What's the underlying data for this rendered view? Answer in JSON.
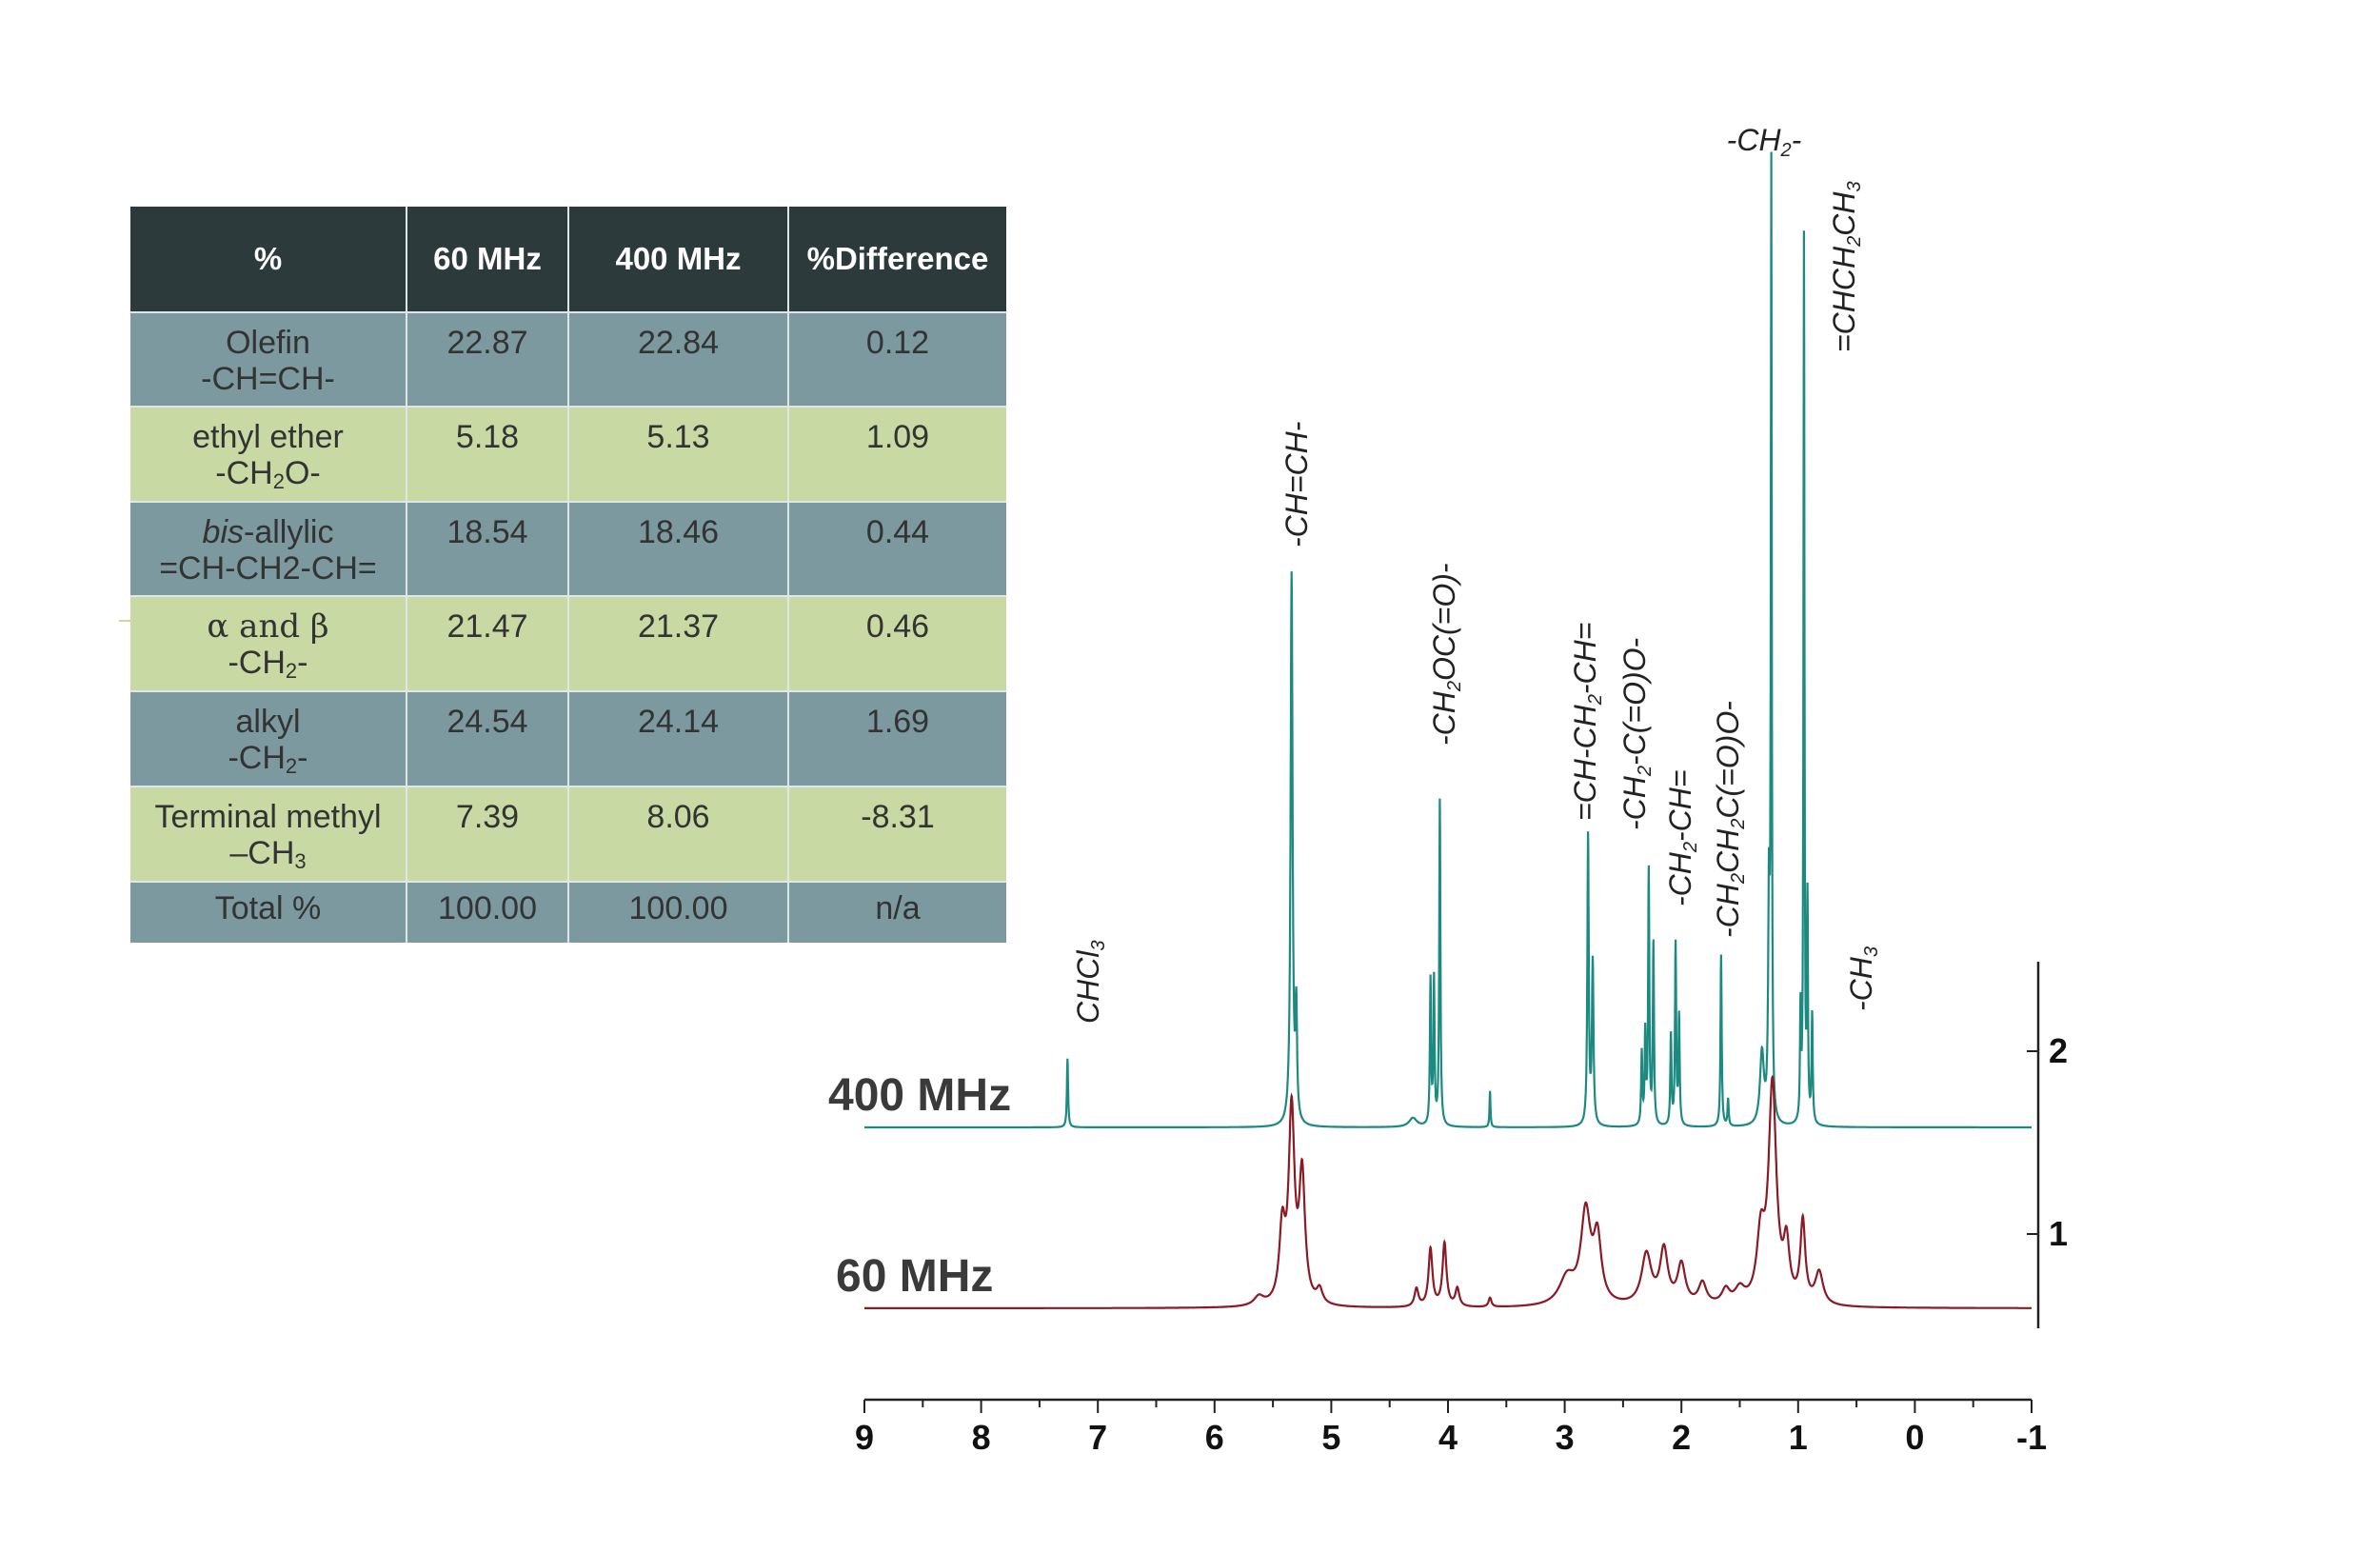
{
  "table": {
    "headers": [
      "%",
      "60 MHz",
      "400 MHz",
      "%Difference"
    ],
    "rows": [
      {
        "label": "Olefin",
        "sublabel": "-CH=CH-",
        "v60": "22.87",
        "v400": "22.84",
        "diff": "0.12"
      },
      {
        "label": "ethyl ether",
        "sub_pre": "-CH",
        "sub_num": "2",
        "sub_post": "O-",
        "v60": "5.18",
        "v400": "5.13",
        "diff": "1.09"
      },
      {
        "label_italic": "bis",
        "label_rest": "-allylic",
        "sublabel": "=CH-CH2-CH=",
        "v60": "18.54",
        "v400": "18.46",
        "diff": "0.44"
      },
      {
        "label": "α  and  β",
        "sub_pre": "-CH",
        "sub_num": "2",
        "sub_post": "-",
        "v60": "21.47",
        "v400": "21.37",
        "diff": "0.46"
      },
      {
        "label": "alkyl",
        "sub_pre": "-CH",
        "sub_num": "2",
        "sub_post": "-",
        "v60": "24.54",
        "v400": "24.14",
        "diff": "1.69"
      },
      {
        "label": "Terminal methyl",
        "sub_pre": "–CH",
        "sub_num": "3",
        "sub_post": "",
        "v60": "7.39",
        "v400": "8.06",
        "diff": "-8.31"
      },
      {
        "label": "Total %",
        "v60": "100.00",
        "v400": "100.00",
        "diff": "n/a"
      }
    ]
  },
  "chart_data": {
    "type": "line",
    "x_axis": {
      "reversed": true,
      "range": [
        9,
        -1
      ],
      "ticks": [
        "9",
        "8",
        "7",
        "6",
        "5",
        "4",
        "3",
        "2",
        "1",
        "0",
        "-1"
      ]
    },
    "y_axis": {
      "ticks": [
        "2",
        "1"
      ]
    },
    "series": [
      {
        "name": "400 MHz",
        "color": "#1d8a82",
        "baseline": 1.6,
        "peaks": [
          [
            7.26,
            0.38,
            0.006
          ],
          [
            5.34,
            3.05,
            0.01
          ],
          [
            5.3,
            0.6,
            0.008
          ],
          [
            4.3,
            0.05,
            0.04
          ],
          [
            4.15,
            0.8,
            0.006
          ],
          [
            4.12,
            0.8,
            0.006
          ],
          [
            4.07,
            1.8,
            0.006
          ],
          [
            3.64,
            0.2,
            0.005
          ],
          [
            2.8,
            1.6,
            0.007
          ],
          [
            2.76,
            0.9,
            0.008
          ],
          [
            2.34,
            0.4,
            0.006
          ],
          [
            2.31,
            0.5,
            0.006
          ],
          [
            2.28,
            1.4,
            0.006
          ],
          [
            2.24,
            1.0,
            0.006
          ],
          [
            2.09,
            0.5,
            0.006
          ],
          [
            2.05,
            1.0,
            0.006
          ],
          [
            2.02,
            0.6,
            0.006
          ],
          [
            1.66,
            0.95,
            0.006
          ],
          [
            1.6,
            0.15,
            0.006
          ],
          [
            1.31,
            0.4,
            0.02
          ],
          [
            1.25,
            1.2,
            0.008
          ],
          [
            1.23,
            5.2,
            0.005
          ],
          [
            0.98,
            0.6,
            0.005
          ],
          [
            0.95,
            4.9,
            0.005
          ],
          [
            0.92,
            1.2,
            0.005
          ],
          [
            0.88,
            0.6,
            0.006
          ]
        ]
      },
      {
        "name": "60 MHz",
        "color": "#8a1a24",
        "baseline": 0.6,
        "peaks": [
          [
            5.62,
            0.05,
            0.05
          ],
          [
            5.42,
            0.4,
            0.03
          ],
          [
            5.34,
            1.05,
            0.03
          ],
          [
            5.25,
            0.7,
            0.03
          ],
          [
            5.1,
            0.08,
            0.03
          ],
          [
            4.27,
            0.1,
            0.02
          ],
          [
            4.15,
            0.32,
            0.02
          ],
          [
            4.03,
            0.35,
            0.02
          ],
          [
            3.92,
            0.1,
            0.02
          ],
          [
            3.64,
            0.05,
            0.015
          ],
          [
            2.98,
            0.15,
            0.08
          ],
          [
            2.82,
            0.5,
            0.05
          ],
          [
            2.72,
            0.35,
            0.04
          ],
          [
            2.3,
            0.28,
            0.05
          ],
          [
            2.15,
            0.3,
            0.04
          ],
          [
            2.0,
            0.22,
            0.04
          ],
          [
            1.82,
            0.12,
            0.04
          ],
          [
            1.62,
            0.08,
            0.04
          ],
          [
            1.5,
            0.08,
            0.05
          ],
          [
            1.32,
            0.35,
            0.04
          ],
          [
            1.22,
            1.2,
            0.04
          ],
          [
            1.1,
            0.3,
            0.03
          ],
          [
            0.96,
            0.45,
            0.025
          ],
          [
            0.82,
            0.18,
            0.04
          ]
        ]
      }
    ],
    "labels": [
      "400 MHz",
      "60 MHz"
    ],
    "annotations": [
      {
        "id": "chcl3",
        "html": "CHCl<tspan baseline-shift='-30%' font-size='20'>3</tspan>"
      },
      {
        "id": "olefin",
        "html": "-CH=CH-"
      },
      {
        "id": "ch2oc",
        "html": "-CH<tspan baseline-shift='-30%' font-size='20'>2</tspan>OC(=O)-"
      },
      {
        "id": "bisallyl",
        "html": "=CH-CH<tspan baseline-shift='-30%' font-size='20'>2</tspan>-CH="
      },
      {
        "id": "alpha",
        "html": "-CH<tspan baseline-shift='-30%' font-size='20'>2</tspan>-C(=O)O-"
      },
      {
        "id": "allyl",
        "html": "-CH<tspan baseline-shift='-30%' font-size='20'>2</tspan>-CH="
      },
      {
        "id": "beta",
        "html": "-CH<tspan baseline-shift='-30%' font-size='20'>2</tspan>CH<tspan baseline-shift='-30%' font-size='20'>2</tspan>C(=O)O-"
      },
      {
        "id": "ch2",
        "html": "-CH<tspan baseline-shift='-30%' font-size='20'>2</tspan>-"
      },
      {
        "id": "ethyl",
        "html": "=CHCH<tspan baseline-shift='-30%' font-size='20'>2</tspan>CH<tspan baseline-shift='-30%' font-size='20'>3</tspan>"
      },
      {
        "id": "ch3",
        "html": "-CH<tspan baseline-shift='-30%' font-size='20'>3</tspan>"
      }
    ]
  }
}
